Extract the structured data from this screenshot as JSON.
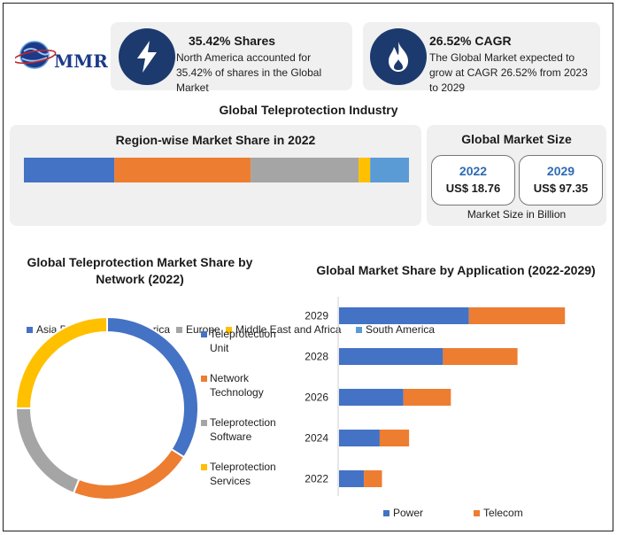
{
  "logo": {
    "text": "MMR"
  },
  "stats": [
    {
      "title": "35.42% Shares",
      "desc": "North America accounted for 35.42% of shares in the Global Market",
      "icon": "lightning-icon"
    },
    {
      "title": "26.52% CAGR",
      "desc": "The Global Market expected to grow at CAGR 26.52% from 2023 to 2029",
      "icon": "flame-icon"
    }
  ],
  "main_title": "Global Teleprotection Industry",
  "market_size": {
    "title": "Global Market Size",
    "boxes": [
      {
        "year": "2022",
        "value": "US$ 18.76"
      },
      {
        "year": "2029",
        "value": "US$ 97.35"
      }
    ],
    "footer": "Market Size in Billion"
  },
  "chart_data": [
    {
      "type": "bar",
      "orientation": "horizontal-stacked-100",
      "title": "Region-wise Market Share in 2022",
      "series": [
        {
          "name": "Asia Pacific",
          "value": 23.5,
          "color": "#4472c4"
        },
        {
          "name": "North America",
          "value": 35.42,
          "color": "#ed7d31"
        },
        {
          "name": "Europe",
          "value": 28.0,
          "color": "#a5a5a5"
        },
        {
          "name": "Middle East and Africa",
          "value": 3.0,
          "color": "#ffc000"
        },
        {
          "name": "South America",
          "value": 10.08,
          "color": "#5b9bd5"
        }
      ],
      "legend": "bottom"
    },
    {
      "type": "pie",
      "variant": "donut",
      "title": "Global Teleprotection Market Share by Network (2022)",
      "slices": [
        {
          "name": "Teleprotection Unit",
          "value": 34,
          "color": "#4472c4"
        },
        {
          "name": "Network Technology",
          "value": 22,
          "color": "#ed7d31"
        },
        {
          "name": "Teleprotection Software",
          "value": 19,
          "color": "#a5a5a5"
        },
        {
          "name": "Teleprotection Services",
          "value": 25,
          "color": "#ffc000"
        }
      ],
      "legend": "right"
    },
    {
      "type": "bar",
      "orientation": "horizontal-stacked",
      "title": "Global Market Share by Application (2022-2029)",
      "categories": [
        "2029",
        "2028",
        "2026",
        "2024",
        "2022"
      ],
      "series": [
        {
          "name": "Power",
          "values": [
            57.5,
            46,
            28.5,
            18,
            11
          ],
          "color": "#4472c4"
        },
        {
          "name": "Telecom",
          "values": [
            42.5,
            33,
            21,
            13,
            8
          ],
          "color": "#ed7d31"
        }
      ],
      "xlim": [
        0,
        100
      ],
      "legend": "bottom"
    }
  ]
}
